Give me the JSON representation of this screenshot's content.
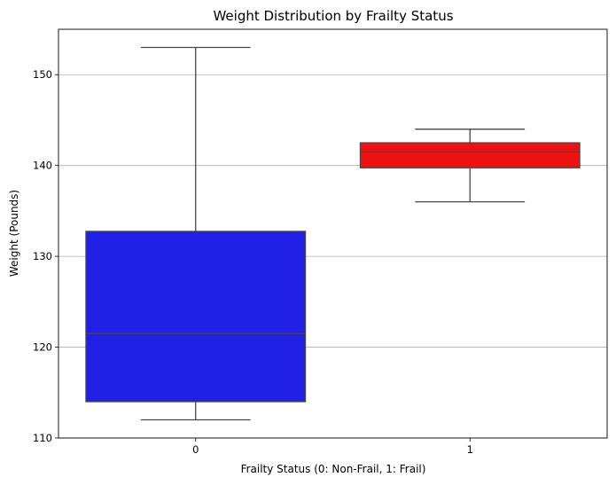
{
  "chart_data": {
    "type": "boxplot",
    "title": "Weight Distribution by Frailty Status",
    "xlabel": "Frailty Status (0: Non-Frail, 1: Frail)",
    "ylabel": "Weight (Pounds)",
    "ylim": [
      110,
      155
    ],
    "yticks": [
      110,
      120,
      130,
      140,
      150
    ],
    "grid": "y-axis horizontal",
    "categories": [
      "0",
      "1"
    ],
    "boxes": [
      {
        "category": "0",
        "whisker_low": 112,
        "q1": 114,
        "median": 121.5,
        "q3": 132.75,
        "whisker_high": 153,
        "color": "#2020e6"
      },
      {
        "category": "1",
        "whisker_low": 136,
        "q1": 139.75,
        "median": 141.5,
        "q3": 142.5,
        "whisker_high": 144,
        "color": "#ee1111"
      }
    ]
  }
}
